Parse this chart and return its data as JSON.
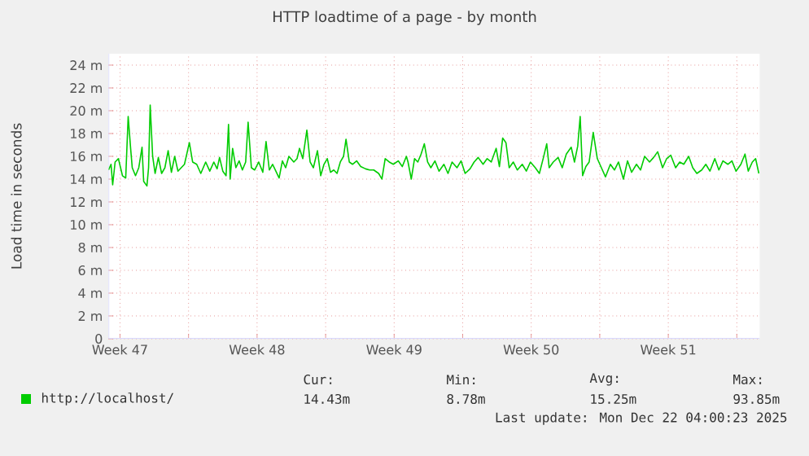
{
  "chart_data": {
    "type": "line",
    "title": "HTTP loadtime of a page - by month",
    "ylabel": "Load time in seconds",
    "xlim": [
      "2025-11-18T22:00",
      "2025-12-22T04:00"
    ],
    "ylim": [
      0,
      25
    ],
    "xticks": [
      {
        "value": "2025-11-19T12:00",
        "label": "Week 47"
      },
      {
        "value": "2025-11-23T00:00",
        "label": null
      },
      {
        "value": "2025-11-26T12:00",
        "label": "Week 48"
      },
      {
        "value": "2025-11-30T00:00",
        "label": null
      },
      {
        "value": "2025-12-03T12:00",
        "label": "Week 49"
      },
      {
        "value": "2025-12-07T00:00",
        "label": null
      },
      {
        "value": "2025-12-10T12:00",
        "label": "Week 50"
      },
      {
        "value": "2025-12-14T00:00",
        "label": null
      },
      {
        "value": "2025-12-17T12:00",
        "label": "Week 51"
      },
      {
        "value": "2025-12-21T00:00",
        "label": null
      }
    ],
    "yticks": [
      0,
      {
        "value": 2,
        "label": "2 m"
      },
      {
        "value": 4,
        "label": "4 m"
      },
      {
        "value": 6,
        "label": "6 m"
      },
      {
        "value": 8,
        "label": "8 m"
      },
      {
        "value": 10,
        "label": "10 m"
      },
      {
        "value": 12,
        "label": "12 m"
      },
      {
        "value": 14,
        "label": "14 m"
      },
      {
        "value": 16,
        "label": "16 m"
      },
      {
        "value": 18,
        "label": "18 m"
      },
      {
        "value": 20,
        "label": "20 m"
      },
      {
        "value": 22,
        "label": "22 m"
      },
      {
        "value": 24,
        "label": "24 m"
      }
    ],
    "grid": true,
    "legend": "bottom left",
    "marker": "none",
    "line_style": "solid",
    "series": [
      {
        "name": "http://localhost/",
        "color": "#00cc00",
        "x": [
          "2025-11-18T22:00",
          "2025-11-19T01:00",
          "2025-11-19T03:00",
          "2025-11-19T06:00",
          "2025-11-19T10:00",
          "2025-11-19T15:00",
          "2025-11-19T19:00",
          "2025-11-19T22:00",
          "2025-11-20T01:00",
          "2025-11-20T03:00",
          "2025-11-20T07:00",
          "2025-11-20T11:00",
          "2025-11-20T15:00",
          "2025-11-20T17:00",
          "2025-11-20T21:00",
          "2025-11-20T23:00",
          "2025-11-21T01:00",
          "2025-11-21T04:00",
          "2025-11-21T07:00",
          "2025-11-21T11:00",
          "2025-11-21T15:00",
          "2025-11-21T19:00",
          "2025-11-21T23:00",
          "2025-11-22T03:00",
          "2025-11-22T07:00",
          "2025-11-22T11:00",
          "2025-11-22T15:00",
          "2025-11-22T19:00",
          "2025-11-23T01:00",
          "2025-11-23T05:00",
          "2025-11-23T10:00",
          "2025-11-23T15:00",
          "2025-11-23T21:00",
          "2025-11-24T02:00",
          "2025-11-24T07:00",
          "2025-11-24T11:00",
          "2025-11-24T14:00",
          "2025-11-24T18:00",
          "2025-11-24T22:00",
          "2025-11-25T01:00",
          "2025-11-25T03:00",
          "2025-11-25T06:00",
          "2025-11-25T10:00",
          "2025-11-25T14:00",
          "2025-11-25T18:00",
          "2025-11-25T22:00",
          "2025-11-26T01:00",
          "2025-11-26T05:00",
          "2025-11-26T09:00",
          "2025-11-26T14:00",
          "2025-11-26T19:00",
          "2025-11-26T23:00",
          "2025-11-27T03:00",
          "2025-11-27T07:00",
          "2025-11-27T11:00",
          "2025-11-27T15:00",
          "2025-11-27T19:00",
          "2025-11-27T23:00",
          "2025-11-28T03:00",
          "2025-11-28T09:00",
          "2025-11-28T13:00",
          "2025-11-28T16:00",
          "2025-11-28T20:00",
          "2025-11-29T01:00",
          "2025-11-29T05:00",
          "2025-11-29T09:00",
          "2025-11-29T14:00",
          "2025-11-29T18:00",
          "2025-11-29T22:00",
          "2025-11-30T02:00",
          "2025-11-30T06:00",
          "2025-11-30T10:00",
          "2025-11-30T14:00",
          "2025-11-30T18:00",
          "2025-11-30T22:00",
          "2025-12-01T01:00",
          "2025-12-01T05:00",
          "2025-12-01T09:00",
          "2025-12-01T14:00",
          "2025-12-01T19:00",
          "2025-12-02T01:00",
          "2025-12-02T06:00",
          "2025-12-02T11:00",
          "2025-12-02T17:00",
          "2025-12-02T21:00",
          "2025-12-03T01:00",
          "2025-12-03T06:00",
          "2025-12-03T11:00",
          "2025-12-03T17:00",
          "2025-12-03T22:00",
          "2025-12-04T03:00",
          "2025-12-04T05:00",
          "2025-12-04T09:00",
          "2025-12-04T13:00",
          "2025-12-04T17:00",
          "2025-12-04T21:00",
          "2025-12-05T01:00",
          "2025-12-05T05:00",
          "2025-12-05T09:00",
          "2025-12-05T14:00",
          "2025-12-05T19:00",
          "2025-12-06T01:00",
          "2025-12-06T06:00",
          "2025-12-06T11:00",
          "2025-12-06T17:00",
          "2025-12-06T22:00",
          "2025-12-07T03:00",
          "2025-12-07T09:00",
          "2025-12-07T14:00",
          "2025-12-07T19:00",
          "2025-12-08T01:00",
          "2025-12-08T06:00",
          "2025-12-08T11:00",
          "2025-12-08T17:00",
          "2025-12-08T21:00",
          "2025-12-09T01:00",
          "2025-12-09T05:00",
          "2025-12-09T09:00",
          "2025-12-09T14:00",
          "2025-12-09T19:00",
          "2025-12-10T01:00",
          "2025-12-10T06:00",
          "2025-12-10T11:00",
          "2025-12-10T17:00",
          "2025-12-10T22:00",
          "2025-12-11T03:00",
          "2025-12-11T07:00",
          "2025-12-11T10:00",
          "2025-12-11T15:00",
          "2025-12-11T21:00",
          "2025-12-12T02:00",
          "2025-12-12T07:00",
          "2025-12-12T13:00",
          "2025-12-12T17:00",
          "2025-12-12T21:00",
          "2025-12-13T00:00",
          "2025-12-13T03:00",
          "2025-12-13T07:00",
          "2025-12-13T11:00",
          "2025-12-13T16:00",
          "2025-12-13T21:00",
          "2025-12-14T02:00",
          "2025-12-14T07:00",
          "2025-12-14T13:00",
          "2025-12-14T18:00",
          "2025-12-14T23:00",
          "2025-12-15T05:00",
          "2025-12-15T10:00",
          "2025-12-15T15:00",
          "2025-12-15T21:00",
          "2025-12-16T02:00",
          "2025-12-16T07:00",
          "2025-12-16T13:00",
          "2025-12-16T18:00",
          "2025-12-16T23:00",
          "2025-12-17T05:00",
          "2025-12-17T10:00",
          "2025-12-17T15:00",
          "2025-12-17T21:00",
          "2025-12-18T02:00",
          "2025-12-18T07:00",
          "2025-12-18T13:00",
          "2025-12-18T18:00",
          "2025-12-18T23:00",
          "2025-12-19T05:00",
          "2025-12-19T10:00",
          "2025-12-19T15:00",
          "2025-12-19T21:00",
          "2025-12-20T02:00",
          "2025-12-20T07:00",
          "2025-12-20T13:00",
          "2025-12-20T18:00",
          "2025-12-20T23:00",
          "2025-12-21T05:00",
          "2025-12-21T10:00",
          "2025-12-21T14:00",
          "2025-12-21T19:00",
          "2025-12-21T23:00",
          "2025-12-22T03:00"
        ],
        "values": [
          14.8,
          15.3,
          13.5,
          15.5,
          15.8,
          14.3,
          14.1,
          19.5,
          16.7,
          15.0,
          14.3,
          15.0,
          16.8,
          13.8,
          13.4,
          15.0,
          20.5,
          16.0,
          14.5,
          15.9,
          14.5,
          15.0,
          16.5,
          14.6,
          16.0,
          14.7,
          15.0,
          15.3,
          17.2,
          15.5,
          15.3,
          14.5,
          15.5,
          14.7,
          15.5,
          14.9,
          15.9,
          14.7,
          14.3,
          18.8,
          14.0,
          16.7,
          15.0,
          15.6,
          14.8,
          15.5,
          19.0,
          15.0,
          14.8,
          15.5,
          14.6,
          17.3,
          14.8,
          15.3,
          14.7,
          14.1,
          15.6,
          15.0,
          16.0,
          15.5,
          15.8,
          16.7,
          15.8,
          18.3,
          15.5,
          15.0,
          16.5,
          14.3,
          15.3,
          15.8,
          14.6,
          14.8,
          14.5,
          15.5,
          16.0,
          17.5,
          15.5,
          15.3,
          15.6,
          15.1,
          14.9,
          14.8,
          14.8,
          14.5,
          14.0,
          15.8,
          15.5,
          15.3,
          15.6,
          15.1,
          16.0,
          15.5,
          14.0,
          15.8,
          15.5,
          16.2,
          17.1,
          15.5,
          15.0,
          15.6,
          14.7,
          15.3,
          14.5,
          15.5,
          15.0,
          15.6,
          14.5,
          14.9,
          15.5,
          15.9,
          15.3,
          15.8,
          15.5,
          16.7,
          15.1,
          17.6,
          17.2,
          15.0,
          15.5,
          14.8,
          15.3,
          14.7,
          15.5,
          15.0,
          14.5,
          15.9,
          17.1,
          15.0,
          15.5,
          15.9,
          15.0,
          16.2,
          16.8,
          15.5,
          16.9,
          19.5,
          14.3,
          15.1,
          15.5,
          18.1,
          15.8,
          15.0,
          14.2,
          15.3,
          14.8,
          15.5,
          14.0,
          15.6,
          14.6,
          15.3,
          14.8,
          16.0,
          15.5,
          15.9,
          16.4,
          15.0,
          15.8,
          16.1,
          15.0,
          15.5,
          15.3,
          16.0,
          15.0,
          14.5,
          14.8,
          15.3,
          14.7,
          15.8,
          14.8,
          15.6,
          15.3,
          15.6,
          14.7,
          15.3,
          16.2,
          14.7,
          15.5,
          15.8,
          14.5
        ]
      }
    ],
    "annotations": [
      "Cur:",
      "14.43m",
      "Min:",
      "8.78m",
      "Avg:",
      "15.25m",
      "Max:",
      "93.85m",
      "Last update: Mon Dec 22 04:00:23 2025"
    ]
  }
}
